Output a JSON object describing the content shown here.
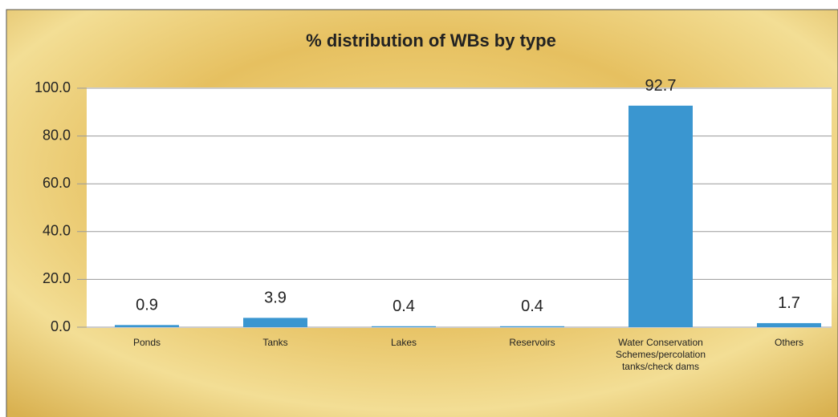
{
  "chart_data": {
    "type": "bar",
    "title": "% distribution of WBs by type",
    "categories": [
      "Ponds",
      "Tanks",
      "Lakes",
      "Reservoirs",
      "Water Conservation Schemes/percolation tanks/check dams",
      "Others"
    ],
    "values": [
      0.9,
      3.9,
      0.4,
      0.4,
      92.7,
      1.7
    ],
    "color": "#3a96d0",
    "ylim": [
      0,
      100
    ],
    "yticks": [
      {
        "value": 0,
        "label": "0.0"
      },
      {
        "value": 20,
        "label": "20.0"
      },
      {
        "value": 40,
        "label": "40.0"
      },
      {
        "value": 60,
        "label": "60.0"
      },
      {
        "value": 80,
        "label": "80.0"
      },
      {
        "value": 100,
        "label": "100.0"
      }
    ],
    "grid": true
  }
}
